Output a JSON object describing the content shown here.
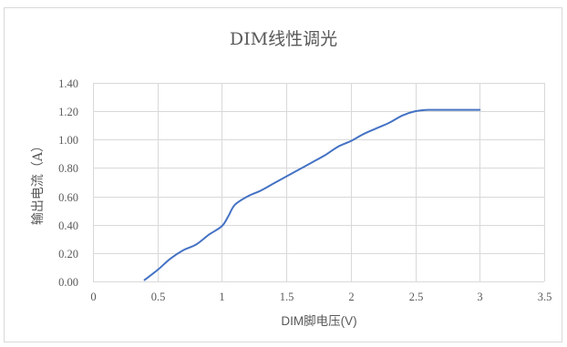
{
  "chart_data": {
    "type": "line",
    "title": "DIM线性调光",
    "xlabel": "DIM脚电压(V)",
    "ylabel": "输出电流（A）",
    "xlim": [
      0,
      3.5
    ],
    "ylim": [
      0,
      1.4
    ],
    "xticks": [
      0,
      0.5,
      1,
      1.5,
      2,
      2.5,
      3,
      3.5
    ],
    "xticklabels": [
      "0",
      "0.5",
      "1",
      "1.5",
      "2",
      "2.5",
      "3",
      "3.5"
    ],
    "yticks": [
      0,
      0.2,
      0.4,
      0.6,
      0.8,
      1.0,
      1.2,
      1.4
    ],
    "yticklabels": [
      "0.00",
      "0.20",
      "0.40",
      "0.60",
      "0.80",
      "1.00",
      "1.20",
      "1.40"
    ],
    "grid": true,
    "legend": "none",
    "colors": {
      "line": "#4472C4",
      "grid": "#D9D9D9",
      "text": "#595959",
      "frame": "#D9D9D9"
    },
    "series": [
      {
        "x": [
          0.4,
          0.5,
          0.6,
          0.7,
          0.8,
          0.9,
          1.0,
          1.05,
          1.1,
          1.2,
          1.3,
          1.4,
          1.5,
          1.6,
          1.7,
          1.8,
          1.9,
          2.0,
          2.1,
          2.2,
          2.3,
          2.4,
          2.5,
          2.6,
          2.7,
          2.8,
          2.9,
          3.0
        ],
        "y": [
          0.01,
          0.08,
          0.16,
          0.22,
          0.26,
          0.33,
          0.39,
          0.46,
          0.54,
          0.6,
          0.64,
          0.69,
          0.74,
          0.79,
          0.84,
          0.89,
          0.95,
          0.99,
          1.04,
          1.08,
          1.12,
          1.17,
          1.2,
          1.21,
          1.21,
          1.21,
          1.21,
          1.21
        ]
      }
    ]
  }
}
